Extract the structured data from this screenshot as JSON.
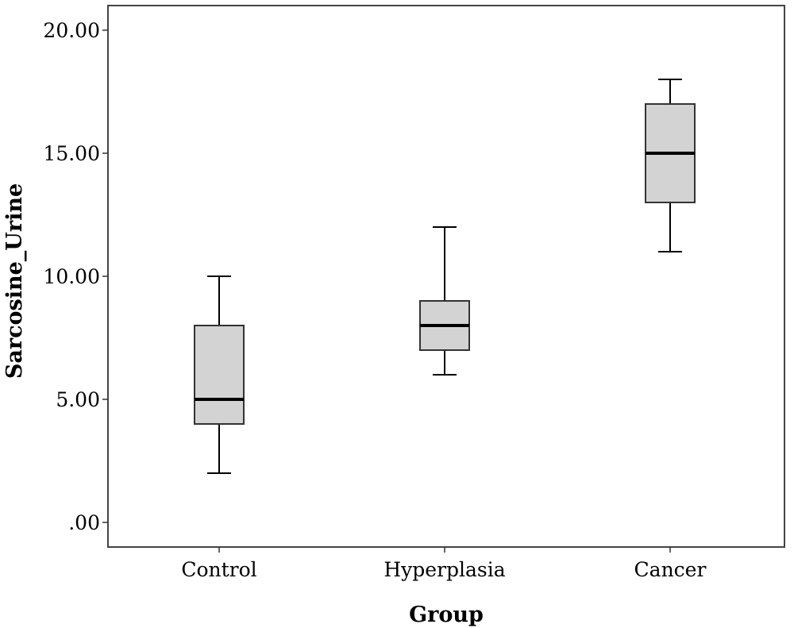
{
  "chart_data": {
    "type": "box",
    "xlabel": "Group",
    "ylabel": "Sarcosine_Urine",
    "categories": [
      "Control",
      "Hyperplasia",
      "Cancer"
    ],
    "ylim": [
      -1,
      21
    ],
    "yticks": [
      0,
      5,
      10,
      15,
      20
    ],
    "ytick_labels": [
      ".00",
      "5.00",
      "10.00",
      "15.00",
      "20.00"
    ],
    "grid": false,
    "boxes": [
      {
        "name": "Control",
        "min": 2,
        "q1": 4,
        "median": 5,
        "q3": 8,
        "max": 10
      },
      {
        "name": "Hyperplasia",
        "min": 6,
        "q1": 7,
        "median": 8,
        "q3": 9,
        "max": 12
      },
      {
        "name": "Cancer",
        "min": 11,
        "q1": 13,
        "median": 15,
        "q3": 17,
        "max": 18
      }
    ],
    "colors": {
      "box_fill": "#d3d3d3",
      "box_stroke": "#333333",
      "median": "#000000"
    }
  }
}
